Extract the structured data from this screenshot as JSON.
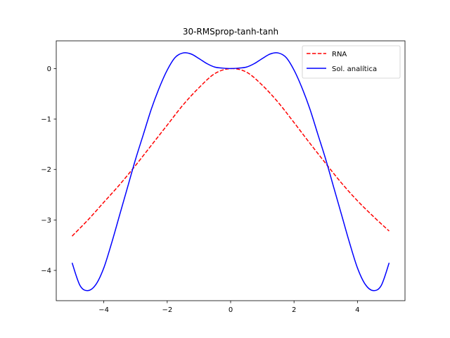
{
  "chart_data": {
    "type": "line",
    "title": "30-RMSprop-tanh-tanh",
    "xlabel": "",
    "ylabel": "",
    "xlim": [
      -5.5,
      5.5
    ],
    "ylim": [
      -4.6,
      0.55
    ],
    "xticks": [
      -4,
      -2,
      0,
      2,
      4
    ],
    "yticks": [
      -4,
      -3,
      -2,
      -1,
      0
    ],
    "xtick_labels": [
      "−4",
      "−2",
      "0",
      "2",
      "4"
    ],
    "ytick_labels": [
      "−4",
      "−3",
      "−2",
      "−1",
      "0"
    ],
    "grid": false,
    "legend_position": "top-right",
    "series": [
      {
        "name": "RNA",
        "color": "#ff0000",
        "style": "dashed",
        "x": [
          -5.0,
          -4.5,
          -4.0,
          -3.5,
          -3.0,
          -2.5,
          -2.0,
          -1.5,
          -1.0,
          -0.5,
          0.0,
          0.5,
          1.0,
          1.5,
          2.0,
          2.5,
          3.0,
          3.5,
          4.0,
          4.5,
          5.0
        ],
        "y": [
          -3.32,
          -3.0,
          -2.65,
          -2.3,
          -1.92,
          -1.52,
          -1.12,
          -0.72,
          -0.38,
          -0.1,
          0.0,
          -0.07,
          -0.33,
          -0.67,
          -1.07,
          -1.48,
          -1.88,
          -2.27,
          -2.62,
          -2.93,
          -3.22
        ]
      },
      {
        "name": "Sol. analítica",
        "color": "#0000ff",
        "style": "solid",
        "x": [
          -5.0,
          -4.75,
          -4.5,
          -4.25,
          -4.0,
          -3.75,
          -3.5,
          -3.25,
          -3.0,
          -2.75,
          -2.5,
          -2.25,
          -2.0,
          -1.75,
          -1.5,
          -1.25,
          -1.0,
          -0.75,
          -0.5,
          -0.25,
          0.0,
          0.25,
          0.5,
          0.75,
          1.0,
          1.25,
          1.5,
          1.75,
          2.0,
          2.25,
          2.5,
          2.75,
          3.0,
          3.25,
          3.5,
          3.75,
          4.0,
          4.25,
          4.5,
          4.75,
          5.0
        ],
        "y": [
          -3.85,
          -4.3,
          -4.4,
          -4.28,
          -3.95,
          -3.45,
          -2.9,
          -2.35,
          -1.8,
          -1.3,
          -0.8,
          -0.38,
          -0.03,
          0.22,
          0.31,
          0.29,
          0.2,
          0.1,
          0.03,
          0.01,
          0.0,
          0.01,
          0.03,
          0.1,
          0.2,
          0.29,
          0.31,
          0.22,
          -0.03,
          -0.38,
          -0.8,
          -1.3,
          -1.8,
          -2.35,
          -2.9,
          -3.45,
          -3.95,
          -4.28,
          -4.4,
          -4.3,
          -3.85
        ]
      }
    ]
  }
}
